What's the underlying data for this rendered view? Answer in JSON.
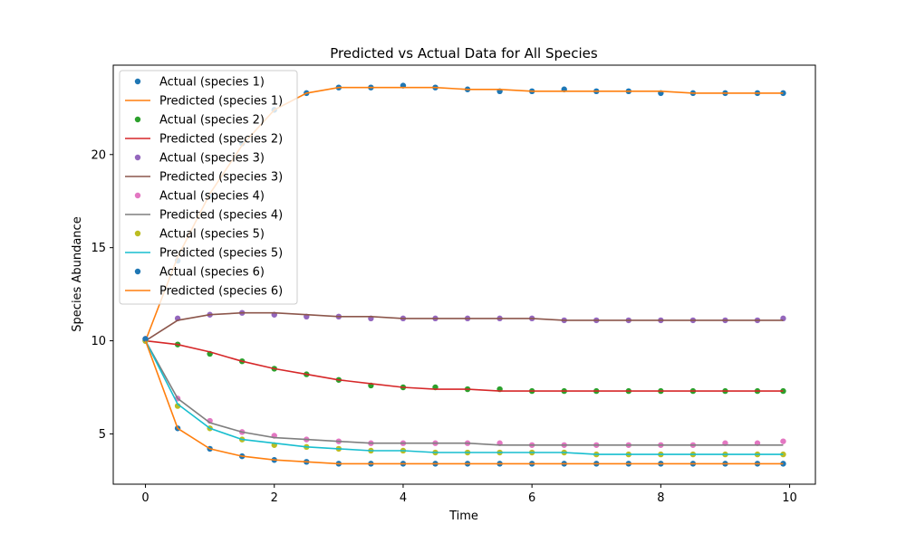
{
  "chart_data": {
    "type": "scatter",
    "title": "Predicted vs Actual Data for All Species",
    "xlabel": "Time",
    "ylabel": "Species Abundance",
    "xlim": [
      -0.5,
      10.4
    ],
    "ylim": [
      2.3,
      24.8
    ],
    "xticks": [
      "0",
      "2",
      "4",
      "6",
      "8",
      "10"
    ],
    "xtick_values": [
      0,
      2,
      4,
      6,
      8,
      10
    ],
    "yticks": [
      "5",
      "10",
      "15",
      "20"
    ],
    "ytick_values": [
      5,
      10,
      15,
      20
    ],
    "grid": false,
    "legend_position": "upper-left",
    "legend": [
      {
        "label": "Actual (species 1)",
        "kind": "marker",
        "color": "#1f77b4"
      },
      {
        "label": "Predicted (species 1)",
        "kind": "line",
        "color": "#ff7f0e"
      },
      {
        "label": "Actual (species 2)",
        "kind": "marker",
        "color": "#2ca02c"
      },
      {
        "label": "Predicted (species 2)",
        "kind": "line",
        "color": "#d62728"
      },
      {
        "label": "Actual (species 3)",
        "kind": "marker",
        "color": "#9467bd"
      },
      {
        "label": "Predicted (species 3)",
        "kind": "line",
        "color": "#8c564b"
      },
      {
        "label": "Actual (species 4)",
        "kind": "marker",
        "color": "#e377c2"
      },
      {
        "label": "Predicted (species 4)",
        "kind": "line",
        "color": "#7f7f7f"
      },
      {
        "label": "Actual (species 5)",
        "kind": "marker",
        "color": "#bcbd22"
      },
      {
        "label": "Predicted (species 5)",
        "kind": "line",
        "color": "#17becf"
      },
      {
        "label": "Actual (species 6)",
        "kind": "marker",
        "color": "#1f77b4"
      },
      {
        "label": "Predicted (species 6)",
        "kind": "line",
        "color": "#ff7f0e"
      }
    ],
    "x": [
      0,
      0.5,
      1,
      1.5,
      2,
      2.5,
      3,
      3.5,
      4,
      4.5,
      5,
      5.5,
      6,
      6.5,
      7,
      7.5,
      8,
      8.5,
      9,
      9.5,
      9.9
    ],
    "series": [
      {
        "name": "Actual (species 1)",
        "color": "#1f77b4",
        "kind": "scatter",
        "values": [
          10.0,
          14.3,
          17.8,
          20.6,
          22.4,
          23.3,
          23.6,
          23.6,
          23.7,
          23.6,
          23.5,
          23.4,
          23.4,
          23.5,
          23.4,
          23.4,
          23.3,
          23.3,
          23.3,
          23.3,
          23.3
        ]
      },
      {
        "name": "Predicted (species 1)",
        "color": "#ff7f0e",
        "kind": "line",
        "values": [
          10.0,
          14.5,
          17.9,
          20.5,
          22.4,
          23.3,
          23.6,
          23.6,
          23.6,
          23.6,
          23.5,
          23.5,
          23.4,
          23.4,
          23.4,
          23.4,
          23.4,
          23.3,
          23.3,
          23.3,
          23.3
        ]
      },
      {
        "name": "Actual (species 2)",
        "color": "#2ca02c",
        "kind": "scatter",
        "values": [
          10.0,
          9.8,
          9.3,
          8.9,
          8.5,
          8.2,
          7.9,
          7.6,
          7.5,
          7.5,
          7.4,
          7.4,
          7.3,
          7.3,
          7.3,
          7.3,
          7.3,
          7.3,
          7.3,
          7.3,
          7.3
        ]
      },
      {
        "name": "Predicted (species 2)",
        "color": "#d62728",
        "kind": "line",
        "values": [
          10.0,
          9.8,
          9.4,
          8.9,
          8.5,
          8.2,
          7.9,
          7.7,
          7.5,
          7.4,
          7.4,
          7.3,
          7.3,
          7.3,
          7.3,
          7.3,
          7.3,
          7.3,
          7.3,
          7.3,
          7.3
        ]
      },
      {
        "name": "Actual (species 3)",
        "color": "#9467bd",
        "kind": "scatter",
        "values": [
          10.1,
          11.2,
          11.4,
          11.5,
          11.4,
          11.3,
          11.3,
          11.2,
          11.2,
          11.2,
          11.2,
          11.2,
          11.2,
          11.1,
          11.1,
          11.1,
          11.1,
          11.1,
          11.1,
          11.1,
          11.2
        ]
      },
      {
        "name": "Predicted (species 3)",
        "color": "#8c564b",
        "kind": "line",
        "values": [
          10.0,
          11.1,
          11.4,
          11.5,
          11.5,
          11.4,
          11.3,
          11.3,
          11.2,
          11.2,
          11.2,
          11.2,
          11.2,
          11.1,
          11.1,
          11.1,
          11.1,
          11.1,
          11.1,
          11.1,
          11.1
        ]
      },
      {
        "name": "Actual (species 4)",
        "color": "#e377c2",
        "kind": "scatter",
        "values": [
          10.1,
          6.9,
          5.7,
          5.1,
          4.9,
          4.7,
          4.6,
          4.5,
          4.5,
          4.5,
          4.5,
          4.5,
          4.4,
          4.4,
          4.4,
          4.4,
          4.4,
          4.4,
          4.5,
          4.5,
          4.6
        ]
      },
      {
        "name": "Predicted (species 4)",
        "color": "#7f7f7f",
        "kind": "line",
        "values": [
          10.0,
          6.9,
          5.6,
          5.1,
          4.8,
          4.7,
          4.6,
          4.5,
          4.5,
          4.5,
          4.5,
          4.4,
          4.4,
          4.4,
          4.4,
          4.4,
          4.4,
          4.4,
          4.4,
          4.4,
          4.4
        ]
      },
      {
        "name": "Actual (species 5)",
        "color": "#bcbd22",
        "kind": "scatter",
        "values": [
          10.0,
          6.5,
          5.3,
          4.7,
          4.4,
          4.3,
          4.2,
          4.1,
          4.1,
          4.0,
          4.0,
          4.0,
          4.0,
          4.0,
          3.9,
          3.9,
          3.9,
          3.9,
          3.9,
          3.9,
          3.9
        ]
      },
      {
        "name": "Predicted (species 5)",
        "color": "#17becf",
        "kind": "line",
        "values": [
          10.0,
          6.6,
          5.3,
          4.7,
          4.5,
          4.3,
          4.2,
          4.1,
          4.1,
          4.0,
          4.0,
          4.0,
          4.0,
          4.0,
          3.9,
          3.9,
          3.9,
          3.9,
          3.9,
          3.9,
          3.9
        ]
      },
      {
        "name": "Actual (species 6)",
        "color": "#1f77b4",
        "kind": "scatter",
        "values": [
          10.1,
          5.3,
          4.2,
          3.8,
          3.6,
          3.5,
          3.4,
          3.4,
          3.4,
          3.4,
          3.4,
          3.4,
          3.4,
          3.4,
          3.4,
          3.4,
          3.4,
          3.4,
          3.4,
          3.4,
          3.4
        ]
      },
      {
        "name": "Predicted (species 6)",
        "color": "#ff7f0e",
        "kind": "line",
        "values": [
          10.0,
          5.3,
          4.2,
          3.8,
          3.6,
          3.5,
          3.4,
          3.4,
          3.4,
          3.4,
          3.4,
          3.4,
          3.4,
          3.4,
          3.4,
          3.4,
          3.4,
          3.4,
          3.4,
          3.4,
          3.4
        ]
      }
    ]
  }
}
